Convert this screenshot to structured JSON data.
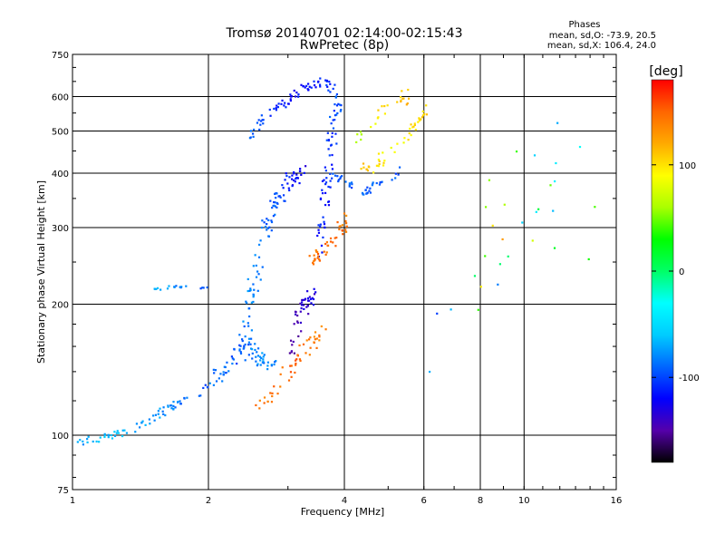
{
  "chart_data": {
    "type": "scatter",
    "title": "Tromsø 20140701 02:14:00-02:15:43",
    "subtitle": "RwPretec (8p)",
    "xlabel": "Frequency [MHz]",
    "ylabel": "Stationary phase Virtual Height [km]",
    "x_scale": "log",
    "y_scale": "log",
    "xlim": [
      1,
      16
    ],
    "ylim": [
      75,
      750
    ],
    "x_ticks": [
      1,
      2,
      4,
      6,
      8,
      10,
      16
    ],
    "y_ticks": [
      75,
      100,
      200,
      300,
      400,
      500,
      600,
      750
    ],
    "grid": true,
    "phase_box": {
      "heading": "Phases",
      "line1": "mean, sd,O: -73.9, 20.5",
      "line2": "mean, sd,X: 106.4, 24.0"
    },
    "colorbar": {
      "unit": "[deg]",
      "range": [
        -180,
        180
      ],
      "ticks": [
        100,
        0,
        -100
      ],
      "colors": [
        "#000000",
        "#5500aa",
        "#0000ff",
        "#0066ff",
        "#00ccff",
        "#00ffff",
        "#00ff66",
        "#00ff00",
        "#aaff00",
        "#ffff00",
        "#ffaa00",
        "#ff6600",
        "#ff0000"
      ]
    },
    "tracks": [
      {
        "x": [
          1.0,
          1.1,
          1.25,
          1.4,
          1.55,
          1.7,
          1.85,
          2.0
        ],
        "y": [
          97,
          97,
          100,
          105,
          112,
          118,
          124,
          130
        ],
        "phase": [
          -80,
          -70,
          -65,
          -72,
          -75,
          -85,
          -90,
          -100
        ],
        "n": 70,
        "spread": 0.03
      },
      {
        "x": [
          2.0,
          2.15,
          2.3,
          2.45,
          2.6,
          2.8
        ],
        "y": [
          130,
          140,
          150,
          160,
          150,
          145
        ],
        "phase": [
          -90,
          -85,
          -95,
          -88,
          -80,
          -84
        ],
        "n": 70,
        "spread": 0.05
      },
      {
        "x": [
          2.4,
          2.5,
          2.65,
          2.8,
          3.0,
          3.2
        ],
        "y": [
          160,
          210,
          280,
          340,
          380,
          400
        ],
        "phase": [
          -90,
          -80,
          -85,
          -95,
          -110,
          -125
        ],
        "n": 110,
        "spread": 0.06
      },
      {
        "x": [
          2.4,
          2.6,
          2.8,
          3.0,
          3.2,
          3.4,
          3.6,
          3.8
        ],
        "y": [
          480,
          520,
          560,
          590,
          620,
          640,
          650,
          620
        ],
        "phase": [
          -80,
          -100,
          -110,
          -115,
          -120,
          -115,
          -110,
          -100
        ],
        "n": 70,
        "spread": 0.03
      },
      {
        "x": [
          3.0,
          3.1,
          3.2,
          3.3,
          3.4
        ],
        "y": [
          150,
          170,
          190,
          200,
          210
        ],
        "phase": [
          -150,
          -145,
          -140,
          -135,
          -130
        ],
        "n": 45,
        "spread": 0.05
      },
      {
        "x": [
          3.5,
          3.6,
          3.7,
          3.8,
          3.9
        ],
        "y": [
          250,
          330,
          420,
          520,
          600
        ],
        "phase": [
          -110,
          -115,
          -108,
          -100,
          -95
        ],
        "n": 70,
        "spread": 0.05
      },
      {
        "x": [
          3.8,
          4.0,
          4.3,
          4.6,
          5.0,
          5.3
        ],
        "y": [
          400,
          380,
          360,
          370,
          390,
          410
        ],
        "phase": [
          -100,
          -95,
          -90,
          -92,
          -95,
          -98
        ],
        "n": 40,
        "spread": 0.03
      },
      {
        "x": [
          3.3,
          3.5,
          3.7,
          3.9,
          4.1
        ],
        "y": [
          250,
          260,
          275,
          295,
          320
        ],
        "phase": [
          140,
          145,
          150,
          148,
          135
        ],
        "n": 45,
        "spread": 0.04
      },
      {
        "x": [
          2.6,
          2.8,
          3.0,
          3.2,
          3.4,
          3.6
        ],
        "y": [
          115,
          125,
          140,
          155,
          165,
          175
        ],
        "phase": [
          140,
          145,
          150,
          145,
          140,
          138
        ],
        "n": 50,
        "spread": 0.05
      },
      {
        "x": [
          4.3,
          4.7,
          5.1,
          5.5,
          5.8,
          6.1
        ],
        "y": [
          400,
          420,
          450,
          480,
          520,
          560
        ],
        "phase": [
          110,
          100,
          90,
          95,
          100,
          105
        ],
        "n": 45,
        "spread": 0.04
      },
      {
        "x": [
          4.2,
          4.5,
          4.8,
          5.2,
          5.6
        ],
        "y": [
          470,
          500,
          540,
          580,
          610
        ],
        "phase": [
          60,
          80,
          100,
          110,
          115
        ],
        "n": 25,
        "spread": 0.05
      },
      {
        "x": [
          1.5,
          1.6,
          1.7,
          1.8,
          1.9,
          2.0
        ],
        "y": [
          215,
          218,
          220,
          218,
          216,
          220
        ],
        "phase": [
          -70,
          -75,
          -80,
          -85,
          -90,
          -95
        ],
        "n": 18,
        "spread": 0.01
      },
      {
        "x": [
          6.5,
          7.5,
          8.5,
          9.5,
          11,
          13
        ],
        "y": [
          150,
          200,
          260,
          330,
          420,
          280
        ],
        "phase": [
          -100,
          120,
          -90,
          130,
          -80,
          80
        ],
        "n": 30,
        "spread": 0.3
      }
    ]
  }
}
